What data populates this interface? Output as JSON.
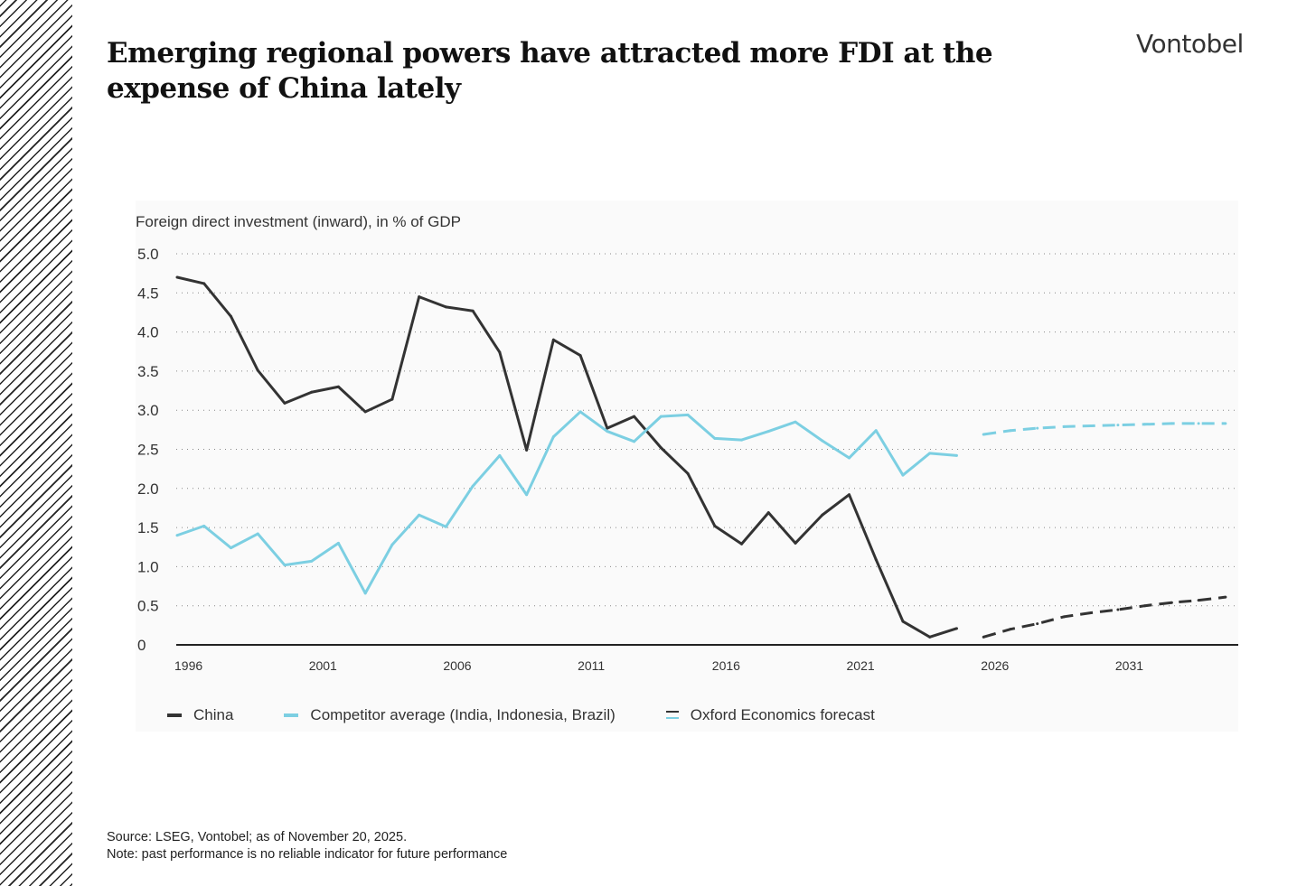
{
  "header": {
    "title": "Emerging regional powers have attracted more FDI at the expense of China lately",
    "logo": "Vontobel"
  },
  "chart_data": {
    "type": "line",
    "ylabel": "Foreign direct investment (inward), in % of GDP",
    "ylim": [
      0,
      5
    ],
    "yticks": [
      "0",
      "0.5",
      "1.0",
      "1.5",
      "2.0",
      "2.5",
      "3.0",
      "3.5",
      "4.0",
      "4.5",
      "5.0"
    ],
    "xlim": [
      1996,
      2035
    ],
    "xticks": [
      "1996",
      "2001",
      "2006",
      "2011",
      "2016",
      "2021",
      "2026",
      "2031"
    ],
    "grid": "horizontal dotted",
    "legend_position": "bottom",
    "colors": {
      "China": "#333333",
      "Competitor": "#7ccfe2"
    },
    "legend": [
      "China",
      "Competitor average (India, Indonesia, Brazil)",
      "Oxford Economics forecast"
    ],
    "series": [
      {
        "name": "China",
        "x": [
          1996,
          1997,
          1998,
          1999,
          2000,
          2001,
          2002,
          2003,
          2004,
          2005,
          2006,
          2007,
          2008,
          2009,
          2010,
          2011,
          2012,
          2013,
          2014,
          2015,
          2016,
          2017,
          2018,
          2019,
          2020,
          2021,
          2022,
          2023,
          2024,
          2025
        ],
        "values": [
          4.7,
          4.62,
          4.2,
          3.51,
          3.09,
          3.23,
          3.3,
          2.98,
          3.14,
          4.45,
          4.32,
          4.27,
          3.74,
          2.49,
          3.9,
          3.7,
          2.77,
          2.92,
          2.52,
          2.19,
          1.52,
          1.29,
          1.69,
          1.3,
          1.66,
          1.92,
          1.09,
          0.3,
          0.1,
          0.21
        ]
      },
      {
        "name": "Competitor average (India, Indonesia, Brazil)",
        "x": [
          1996,
          1997,
          1998,
          1999,
          2000,
          2001,
          2002,
          2003,
          2004,
          2005,
          2006,
          2007,
          2008,
          2009,
          2010,
          2011,
          2012,
          2013,
          2014,
          2015,
          2016,
          2017,
          2018,
          2019,
          2020,
          2021,
          2022,
          2023,
          2024,
          2025
        ],
        "values": [
          1.4,
          1.52,
          1.24,
          1.42,
          1.02,
          1.07,
          1.3,
          0.66,
          1.28,
          1.66,
          1.51,
          2.03,
          2.42,
          1.92,
          2.66,
          2.98,
          2.73,
          2.6,
          2.92,
          2.94,
          2.64,
          2.62,
          2.73,
          2.85,
          2.61,
          2.39,
          2.74,
          2.17,
          2.45,
          2.42
        ]
      },
      {
        "name": "China forecast",
        "x": [
          2026,
          2027,
          2028,
          2029,
          2030,
          2031,
          2032,
          2033,
          2034,
          2035
        ],
        "values": [
          0.1,
          0.2,
          0.27,
          0.36,
          0.41,
          0.45,
          0.5,
          0.54,
          0.57,
          0.61
        ]
      },
      {
        "name": "Competitor forecast",
        "x": [
          2026,
          2027,
          2028,
          2029,
          2030,
          2031,
          2032,
          2033,
          2034,
          2035
        ],
        "values": [
          2.69,
          2.74,
          2.77,
          2.79,
          2.8,
          2.81,
          2.82,
          2.83,
          2.83,
          2.83
        ]
      }
    ]
  },
  "footer": {
    "source": "Source: LSEG, Vontobel; as of November 20, 2025.",
    "note": "Note: past performance is no reliable indicator for future performance"
  }
}
